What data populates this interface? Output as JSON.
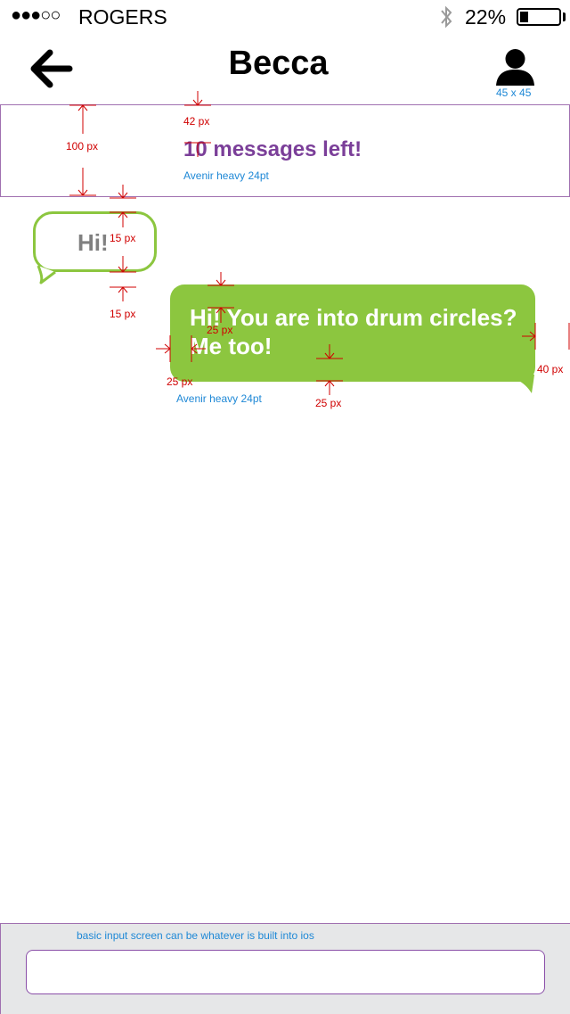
{
  "status_bar": {
    "signal": "●●●○○",
    "carrier": "ROGERS",
    "battery_percent": "22%",
    "battery_level": 0.22
  },
  "nav": {
    "back_icon": "arrow-left-icon",
    "title": "Becca",
    "profile_icon": "person-icon",
    "profile_spec": "45 x 45"
  },
  "banner": {
    "messages_left": "10 messages left!",
    "font_spec": "Avenir heavy 24pt",
    "spec_height": "100 px",
    "spec_top": "42 px"
  },
  "conversation": {
    "incoming": {
      "text": "Hi!",
      "spec_inner": "15 px",
      "spec_gap": "15 px"
    },
    "outgoing": {
      "text": "Hi! You are into drum circles? Me too!",
      "font_spec": "Avenir heavy 24pt",
      "spec_top_padding": "25 px",
      "spec_left_padding": "25 px",
      "spec_bottom_padding": "25 px",
      "spec_right_margin": "40 px"
    }
  },
  "input": {
    "note": "basic input screen can be whatever is built into ios",
    "value": "",
    "placeholder": ""
  },
  "colors": {
    "accent_green": "#8cc63f",
    "accent_purple": "#7b3f99",
    "spec_blue": "#1e88d6",
    "spec_red": "#d00000",
    "input_bg": "#e6e7e8"
  }
}
